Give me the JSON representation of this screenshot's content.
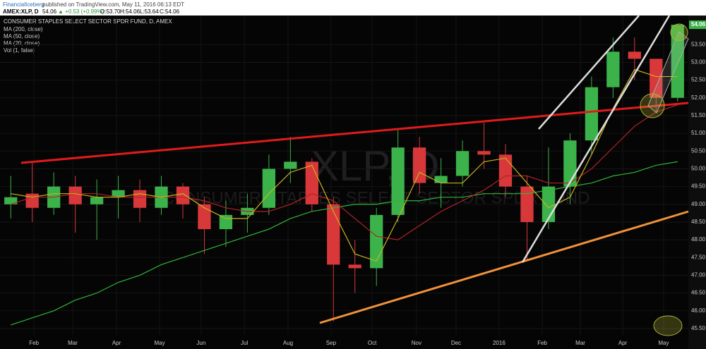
{
  "header": {
    "author": "FinancialIceberg",
    "published": "published on TradingView.com, May 11, 2016 06:13 EDT",
    "symbol": "AMEX:XLP, D",
    "last": "54.06",
    "change": "▲ +0.53 (+0.99%)",
    "open": "O:53.70",
    "high": "H:54.06",
    "low": "L:53.64",
    "close": "C:54.06"
  },
  "legend": [
    "CONSUMER STAPLES SELECT SECTOR SPDR FUND, D, AMEX",
    "MA (200, close)",
    "MA (50, close)",
    "MA (20, close)",
    "Vol (1, false)"
  ],
  "watermark": [
    "XLP, D",
    "CONSUMER STAPLES SELECT SECTOR SPDR FUND"
  ],
  "chart_data": {
    "type": "candlestick",
    "up_color": "#3cb34a",
    "down_color": "#d9383a",
    "open": [
      49.0,
      49.3,
      48.9,
      49.5,
      49.0,
      49.2,
      49.4,
      48.9,
      49.5,
      49.0,
      48.3,
      48.7,
      48.9,
      50.0,
      50.2,
      49.0,
      47.3,
      47.2,
      48.7,
      50.6,
      49.6,
      49.8,
      50.5,
      50.4,
      49.5,
      48.5,
      49.5,
      50.8,
      52.3,
      53.3,
      53.1,
      52.0
    ],
    "high": [
      49.8,
      50.2,
      49.9,
      49.8,
      49.7,
      49.8,
      49.7,
      49.8,
      49.6,
      49.2,
      49.1,
      49.3,
      50.4,
      50.9,
      50.3,
      49.2,
      48.0,
      48.9,
      51.1,
      50.9,
      50.3,
      50.8,
      51.3,
      50.7,
      49.8,
      50.6,
      51.0,
      52.6,
      53.7,
      53.7,
      53.1,
      54.06
    ],
    "low": [
      48.6,
      48.5,
      48.7,
      48.2,
      48.0,
      48.6,
      48.5,
      48.7,
      48.6,
      47.6,
      47.8,
      48.2,
      48.7,
      49.6,
      48.8,
      45.7,
      46.5,
      46.7,
      48.5,
      49.3,
      48.9,
      49.5,
      50.0,
      49.2,
      47.4,
      48.3,
      49.0,
      50.4,
      52.0,
      52.5,
      51.6,
      51.9
    ],
    "close": [
      49.2,
      48.9,
      49.5,
      49.0,
      49.2,
      49.4,
      48.9,
      49.5,
      49.0,
      48.3,
      48.7,
      48.9,
      50.0,
      50.2,
      49.0,
      47.3,
      47.2,
      48.7,
      50.6,
      49.6,
      49.8,
      50.5,
      50.4,
      49.5,
      48.5,
      49.5,
      50.8,
      52.3,
      53.3,
      53.1,
      52.0,
      54.06
    ],
    "series": [
      {
        "name": "MA (200, close)",
        "color": "#2fb53a",
        "values": [
          45.6,
          45.8,
          46.0,
          46.3,
          46.5,
          46.8,
          47.0,
          47.3,
          47.5,
          47.7,
          47.9,
          48.1,
          48.3,
          48.6,
          48.8,
          48.9,
          49.0,
          49.0,
          49.1,
          49.1,
          49.2,
          49.2,
          49.3,
          49.3,
          49.3,
          49.4,
          49.5,
          49.6,
          49.8,
          49.9,
          50.1,
          50.2
        ]
      },
      {
        "name": "MA (50, close)",
        "color": "#b3222a",
        "values": [
          49.0,
          49.2,
          49.2,
          49.3,
          49.3,
          49.2,
          49.2,
          49.2,
          49.2,
          49.1,
          48.9,
          48.8,
          48.8,
          49.0,
          49.3,
          49.1,
          48.6,
          48.1,
          48.0,
          48.4,
          48.8,
          49.1,
          49.4,
          49.8,
          49.8,
          49.6,
          49.6,
          50.0,
          50.6,
          51.2,
          51.6,
          51.8
        ]
      },
      {
        "name": "MA (20, close)",
        "color": "#c8b21e",
        "values": [
          49.3,
          49.2,
          49.3,
          49.3,
          49.2,
          49.2,
          49.3,
          49.2,
          49.3,
          48.9,
          48.6,
          48.6,
          49.3,
          49.9,
          50.1,
          48.8,
          47.6,
          47.4,
          48.6,
          49.9,
          49.6,
          49.6,
          50.2,
          50.3,
          49.6,
          48.9,
          49.2,
          50.4,
          51.7,
          52.8,
          52.6,
          52.6
        ]
      }
    ],
    "xlim": [
      0,
      32
    ],
    "xticks": [
      {
        "value": 1.58,
        "label": "Feb"
      },
      {
        "value": 3.38,
        "label": "Mar"
      },
      {
        "value": 5.42,
        "label": "Apr"
      },
      {
        "value": 7.42,
        "label": "May"
      },
      {
        "value": 9.35,
        "label": "Jun"
      },
      {
        "value": 11.36,
        "label": "Jul"
      },
      {
        "value": 13.39,
        "label": "Aug"
      },
      {
        "value": 15.39,
        "label": "Sep"
      },
      {
        "value": 17.3,
        "label": "Oct"
      },
      {
        "value": 19.36,
        "label": "Nov"
      },
      {
        "value": 21.2,
        "label": "Dec"
      },
      {
        "value": 23.2,
        "label": "2016"
      },
      {
        "value": 25.21,
        "label": "Feb"
      },
      {
        "value": 26.98,
        "label": "Mar"
      },
      {
        "value": 28.95,
        "label": "Apr"
      },
      {
        "value": 30.85,
        "label": "May"
      }
    ],
    "ylim": [
      45.32,
      54.32
    ],
    "yticks": [
      {
        "value": 45.5,
        "label": "45.50"
      },
      {
        "value": 46,
        "label": "46.00"
      },
      {
        "value": 46.5,
        "label": "46.50"
      },
      {
        "value": 47,
        "label": "47.00"
      },
      {
        "value": 47.5,
        "label": "47.50"
      },
      {
        "value": 48,
        "label": "48.00"
      },
      {
        "value": 48.5,
        "label": "48.50"
      },
      {
        "value": 49,
        "label": "49.00"
      },
      {
        "value": 49.5,
        "label": "49.50"
      },
      {
        "value": 50,
        "label": "50.00"
      },
      {
        "value": 50.5,
        "label": "50.50"
      },
      {
        "value": 51,
        "label": "51.00"
      },
      {
        "value": 51.5,
        "label": "51.50"
      },
      {
        "value": 52,
        "label": "52.00"
      },
      {
        "value": 52.5,
        "label": "52.50"
      },
      {
        "value": 53,
        "label": "53.00"
      },
      {
        "value": 53.5,
        "label": "53.50"
      }
    ],
    "last_price": "54.06"
  }
}
